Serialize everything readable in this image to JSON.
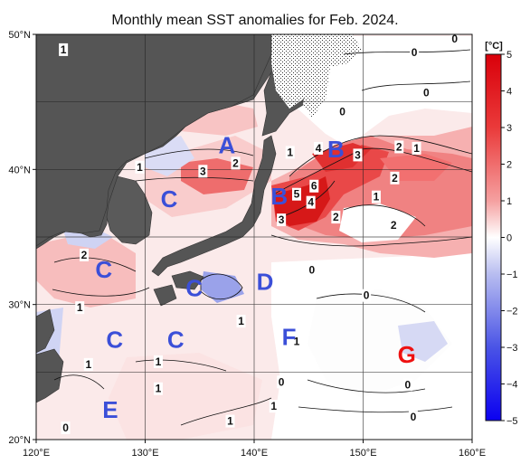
{
  "chart_data": {
    "type": "heatmap",
    "title": "Monthly mean SST anomalies for Feb. 2024.",
    "x_axis": {
      "range": [
        120,
        160
      ],
      "ticks": [
        "120°E",
        "130°E",
        "140°E",
        "150°E",
        "160°E"
      ],
      "tick_values": [
        120,
        130,
        140,
        150,
        160
      ]
    },
    "y_axis": {
      "range": [
        20,
        50
      ],
      "ticks": [
        "20°N",
        "30°N",
        "40°N",
        "50°N"
      ],
      "tick_values": [
        20,
        30,
        40,
        50
      ]
    },
    "colorbar": {
      "unit": "[°C]",
      "range": [
        -5,
        5
      ],
      "ticks": [
        "5",
        "4",
        "3",
        "2",
        "1",
        "0",
        "−1",
        "−2",
        "−3",
        "−4",
        "−5"
      ],
      "tick_values": [
        5,
        4,
        3,
        2,
        1,
        0,
        -1,
        -2,
        -3,
        -4,
        -5
      ],
      "colors": [
        "#ffffff",
        "#ff0000",
        "#0000ff"
      ]
    },
    "regions": [
      {
        "label": "A",
        "lon": 137.5,
        "lat": 41.8,
        "color": "#3b4fd8"
      },
      {
        "label": "B",
        "lon": 147.5,
        "lat": 41.5,
        "color": "#3b4fd8"
      },
      {
        "label": "B",
        "lon": 142.3,
        "lat": 38.0,
        "color": "#3b4fd8"
      },
      {
        "label": "C",
        "lon": 132.2,
        "lat": 37.8,
        "color": "#3b4fd8"
      },
      {
        "label": "C",
        "lon": 126.2,
        "lat": 32.6,
        "color": "#3b4fd8"
      },
      {
        "label": "C",
        "lon": 134.5,
        "lat": 31.2,
        "color": "#3b4fd8"
      },
      {
        "label": "C",
        "lon": 127.2,
        "lat": 27.4,
        "color": "#3b4fd8"
      },
      {
        "label": "C",
        "lon": 132.8,
        "lat": 27.4,
        "color": "#3b4fd8"
      },
      {
        "label": "D",
        "lon": 141.0,
        "lat": 31.7,
        "color": "#3b4fd8"
      },
      {
        "label": "F",
        "lon": 143.2,
        "lat": 27.6,
        "color": "#3b4fd8"
      },
      {
        "label": "G",
        "lon": 154.0,
        "lat": 26.3,
        "color": "#ee1111"
      },
      {
        "label": "E",
        "lon": 126.8,
        "lat": 22.2,
        "color": "#3b4fd8"
      }
    ],
    "contour_labels": [
      {
        "text": "0",
        "lon": 154.7,
        "lat": 48.6
      },
      {
        "text": "0",
        "lon": 158.4,
        "lat": 49.6
      },
      {
        "text": "0",
        "lon": 155.8,
        "lat": 45.6
      },
      {
        "text": "0",
        "lon": 148.1,
        "lat": 44.2
      },
      {
        "text": "1",
        "lon": 122.5,
        "lat": 48.8
      },
      {
        "text": "1",
        "lon": 129.5,
        "lat": 40.1
      },
      {
        "text": "3",
        "lon": 135.3,
        "lat": 39.8
      },
      {
        "text": "2",
        "lon": 138.3,
        "lat": 40.4
      },
      {
        "text": "1",
        "lon": 143.3,
        "lat": 41.2
      },
      {
        "text": "4",
        "lon": 145.9,
        "lat": 41.5
      },
      {
        "text": "3",
        "lon": 149.5,
        "lat": 41.0
      },
      {
        "text": "2",
        "lon": 153.3,
        "lat": 41.6
      },
      {
        "text": "1",
        "lon": 154.9,
        "lat": 41.5
      },
      {
        "text": "2",
        "lon": 152.9,
        "lat": 39.3
      },
      {
        "text": "6",
        "lon": 145.5,
        "lat": 38.7
      },
      {
        "text": "5",
        "lon": 143.9,
        "lat": 38.1
      },
      {
        "text": "4",
        "lon": 145.2,
        "lat": 37.5
      },
      {
        "text": "1",
        "lon": 151.2,
        "lat": 37.9
      },
      {
        "text": "2",
        "lon": 147.5,
        "lat": 36.4
      },
      {
        "text": "3",
        "lon": 142.5,
        "lat": 36.2
      },
      {
        "text": "2",
        "lon": 152.8,
        "lat": 35.8
      },
      {
        "text": "2",
        "lon": 124.4,
        "lat": 33.6
      },
      {
        "text": "0",
        "lon": 145.3,
        "lat": 32.5
      },
      {
        "text": "0",
        "lon": 150.3,
        "lat": 30.6
      },
      {
        "text": "1",
        "lon": 124.0,
        "lat": 29.7
      },
      {
        "text": "1",
        "lon": 138.8,
        "lat": 28.7
      },
      {
        "text": "1",
        "lon": 143.9,
        "lat": 27.2
      },
      {
        "text": "1",
        "lon": 124.8,
        "lat": 25.5
      },
      {
        "text": "1",
        "lon": 131.2,
        "lat": 25.7
      },
      {
        "text": "1",
        "lon": 131.2,
        "lat": 23.7
      },
      {
        "text": "0",
        "lon": 142.5,
        "lat": 24.2
      },
      {
        "text": "0",
        "lon": 154.1,
        "lat": 24.0
      },
      {
        "text": "0",
        "lon": 154.6,
        "lat": 21.6
      },
      {
        "text": "1",
        "lon": 137.8,
        "lat": 21.3
      },
      {
        "text": "1",
        "lon": 141.8,
        "lat": 22.4
      },
      {
        "text": "0",
        "lon": 122.7,
        "lat": 20.8
      }
    ]
  }
}
